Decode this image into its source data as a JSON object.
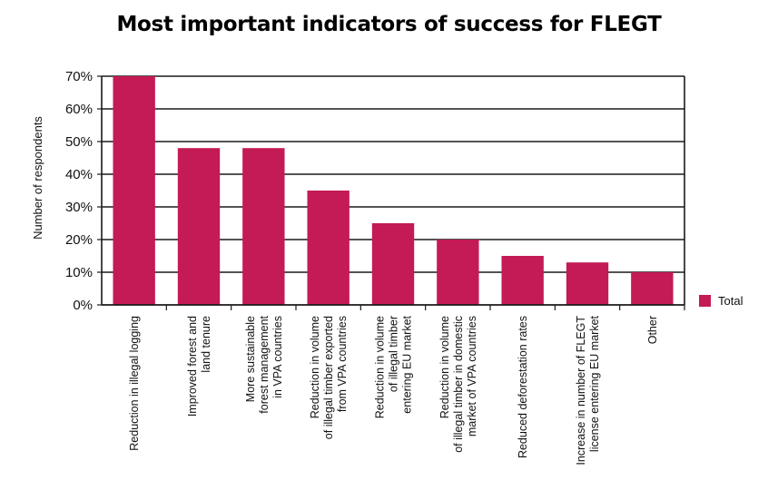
{
  "chart_data": {
    "type": "bar",
    "title": "Most important indicators of success for FLEGT",
    "ylabel": "Number of respondents",
    "xlabel": "",
    "ylim": [
      0,
      70
    ],
    "yticks": [
      "0%",
      "10%",
      "20%",
      "30%",
      "40%",
      "50%",
      "60%",
      "70%"
    ],
    "grid": true,
    "legend_position": "right",
    "categories": [
      [
        "Reduction in illegal logging"
      ],
      [
        "Improved forest and",
        "land tenure"
      ],
      [
        "More sustainable",
        "forest management",
        "in VPA countries"
      ],
      [
        "Reduction in volume",
        "of illegal timber exported",
        "from VPA countries"
      ],
      [
        "Reduction in volume",
        "of illegal timber",
        "entering EU market"
      ],
      [
        "Reduction in volume",
        "of illegal timber in domestic",
        "market of VPA countries"
      ],
      [
        "Reduced deforestation rates"
      ],
      [
        "Increase in number of FLEGT",
        "license entering EU market"
      ],
      [
        "Other"
      ]
    ],
    "series": [
      {
        "name": "Total",
        "color": "#c41a55",
        "values": [
          70,
          48,
          48,
          35,
          25,
          20,
          15,
          13,
          10
        ]
      }
    ]
  }
}
